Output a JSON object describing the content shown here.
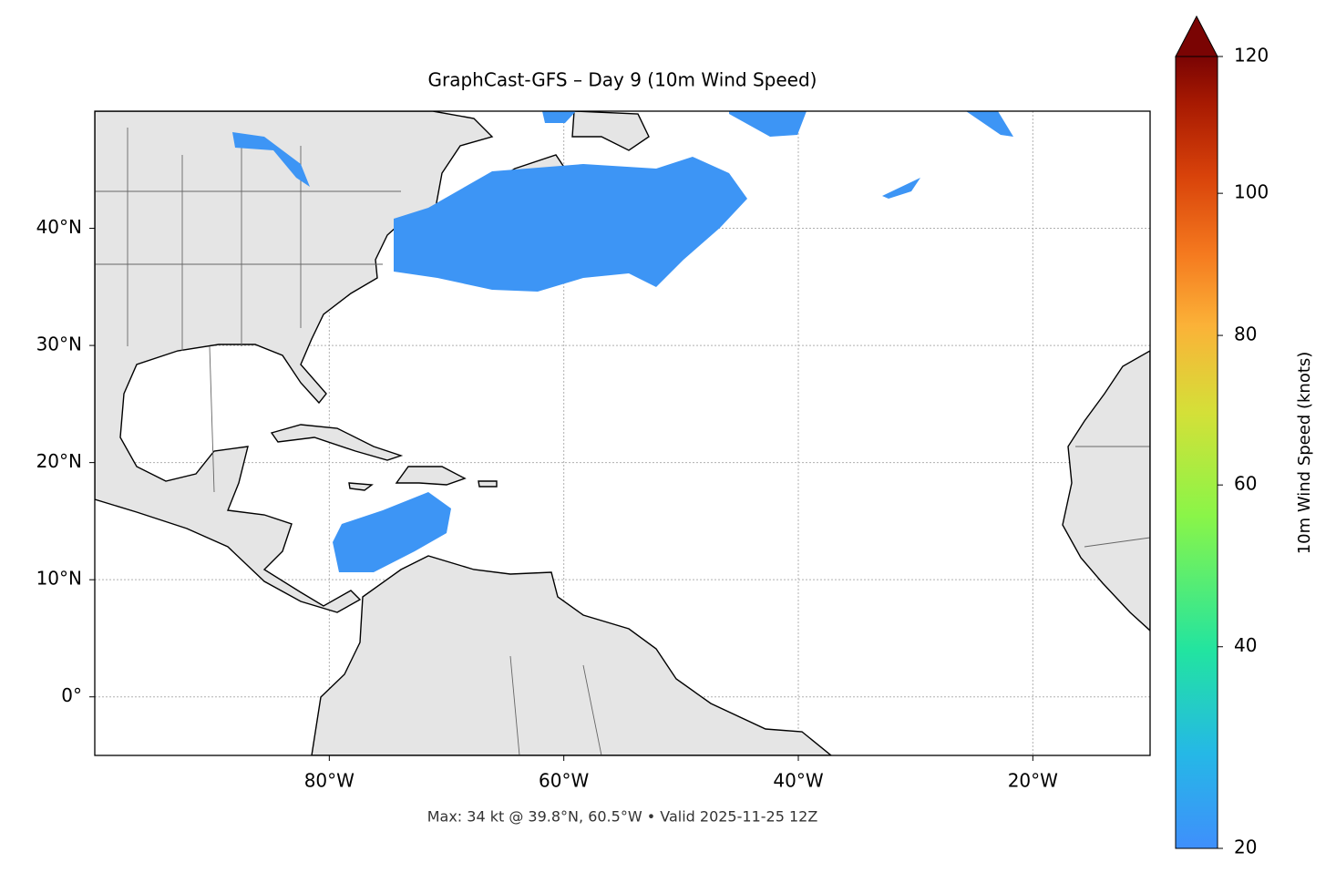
{
  "title": "GraphCast-GFS – Day 9 (10m Wind Speed)",
  "map": {
    "xlim": [
      -100,
      -10
    ],
    "ylim": [
      -5,
      50
    ],
    "xticks": [
      {
        "value": -80,
        "label": "80°W"
      },
      {
        "value": -60,
        "label": "60°W"
      },
      {
        "value": -40,
        "label": "40°W"
      },
      {
        "value": -20,
        "label": "20°W"
      }
    ],
    "yticks": [
      {
        "value": 0,
        "label": "0°"
      },
      {
        "value": 10,
        "label": "10°N"
      },
      {
        "value": 20,
        "label": "20°N"
      },
      {
        "value": 30,
        "label": "30°N"
      },
      {
        "value": 40,
        "label": "40°N"
      }
    ],
    "grid": true
  },
  "colorbar": {
    "label": "10m Wind Speed (knots)",
    "lim": [
      20,
      120
    ],
    "ticks": [
      20,
      40,
      60,
      80,
      100,
      120
    ]
  },
  "footer": "Max: 34 kt @ 39.8°N, 60.5°W • Valid 2025-11-25 12Z"
}
